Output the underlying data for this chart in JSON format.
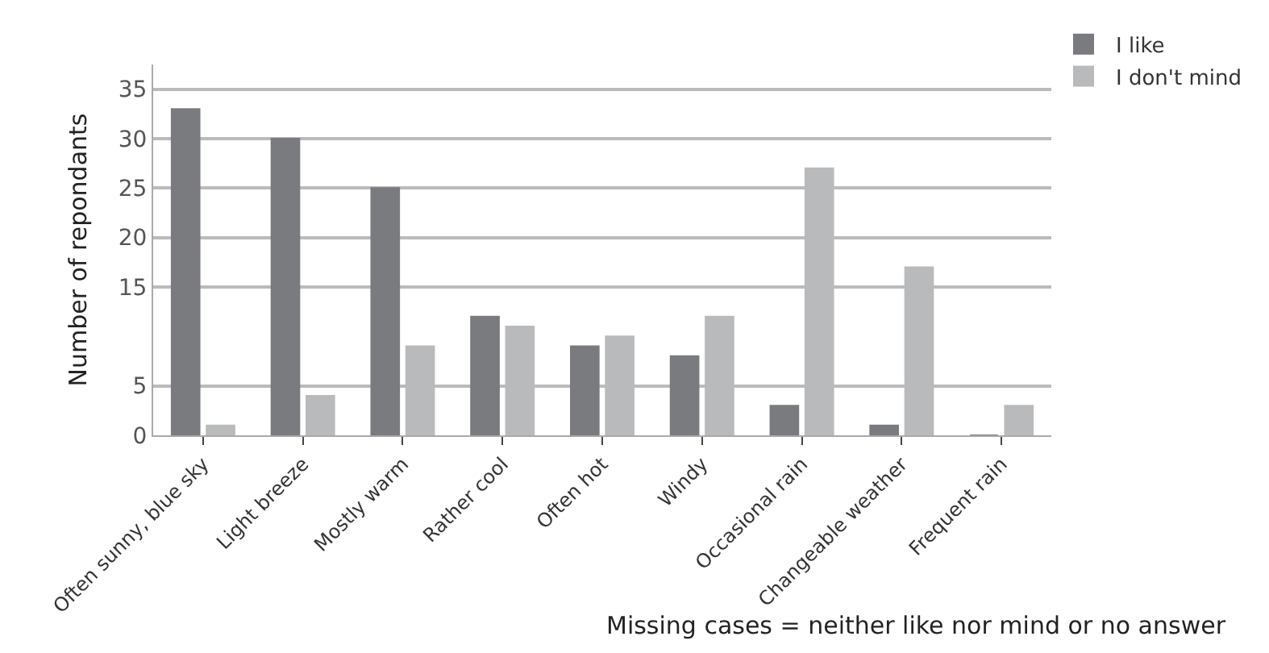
{
  "chart_data": {
    "type": "bar",
    "ylabel": "Number of repondants",
    "categories": [
      "Often sunny, blue sky",
      "Light breeze",
      "Mostly warm",
      "Rather cool",
      "Often hot",
      "Windy",
      "Occasional rain",
      "Changeable weather",
      "Frequent rain"
    ],
    "series": [
      {
        "name": "I like",
        "color": "#7a7b7f",
        "values": [
          33,
          30,
          25,
          12,
          9,
          8,
          3,
          1,
          0
        ]
      },
      {
        "name": "I don't mind",
        "color": "#b9babc",
        "values": [
          1,
          4,
          9,
          11,
          10,
          12,
          27,
          17,
          3
        ]
      }
    ],
    "ylim": [
      0,
      37.5
    ],
    "yticks": [
      0,
      5,
      15,
      20,
      25,
      30,
      35
    ],
    "grid": "y",
    "legend": "top right",
    "annotations": [
      "Missing cases = neither like nor mind or no answer"
    ]
  }
}
